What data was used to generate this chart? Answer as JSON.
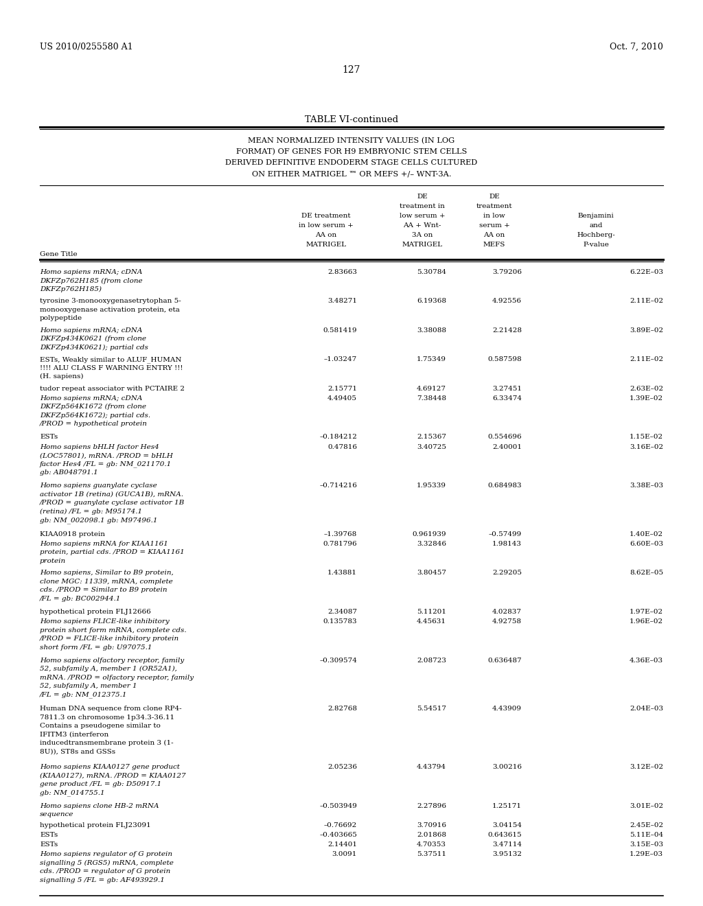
{
  "patent_left": "US 2010/0255580 A1",
  "patent_right": "Oct. 7, 2010",
  "page_number": "127",
  "table_title": "TABLE VI-continued",
  "subtitle_lines": [
    "MEAN NORMALIZED INTENSITY VALUES (IN LOG",
    "FORMAT) OF GENES FOR H9 EMBRYONIC STEM CELLS",
    "DERIVED DEFINITIVE ENDODERM STAGE CELLS CULTURED",
    "ON EITHER MATRIGEL ™ OR MEFS +/– WNT-3A."
  ],
  "rows": [
    {
      "gene": "Homo sapiens mRNA; cDNA\nDKFZp762H185 (from clone\nDKFZp762H185)",
      "italic": true,
      "v1": "2.83663",
      "v2": "5.30784",
      "v3": "3.79206",
      "v4": "6.22E–03"
    },
    {
      "gene": "tyrosine 3-monooxygenasetrytophan 5-\nmonooxygenase activation protein, eta\npolypeptide",
      "italic": false,
      "v1": "3.48271",
      "v2": "6.19368",
      "v3": "4.92556",
      "v4": "2.11E–02"
    },
    {
      "gene": "Homo sapiens mRNA; cDNA\nDKFZp434K0621 (from clone\nDKFZp434K0621); partial cds",
      "italic": true,
      "v1": "0.581419",
      "v2": "3.38088",
      "v3": "2.21428",
      "v4": "3.89E–02"
    },
    {
      "gene": "ESTs, Weakly similar to ALUF_HUMAN\n!!!! ALU CLASS F WARNING ENTRY !!!\n(H. sapiens)",
      "italic": false,
      "v1": "–1.03247",
      "v2": "1.75349",
      "v3": "0.587598",
      "v4": "2.11E–02"
    },
    {
      "gene": "tudor repeat associator with PCTAIRE 2",
      "italic": false,
      "v1": "2.15771",
      "v2": "4.69127",
      "v3": "3.27451",
      "v4": "2.63E–02"
    },
    {
      "gene": "Homo sapiens mRNA; cDNA\nDKFZp564K1672 (from clone\nDKFZp564K1672); partial cds.\n/PROD = hypothetical protein",
      "italic": true,
      "v1": "4.49405",
      "v2": "7.38448",
      "v3": "6.33474",
      "v4": "1.39E–02"
    },
    {
      "gene": "ESTs",
      "italic": false,
      "v1": "–0.184212",
      "v2": "2.15367",
      "v3": "0.554696",
      "v4": "1.15E–02"
    },
    {
      "gene": "Homo sapiens bHLH factor Hes4\n(LOC57801), mRNA. /PROD = bHLH\nfactor Hes4 /FL = gb: NM_021170.1\ngb: AB048791.1",
      "italic": true,
      "v1": "0.47816",
      "v2": "3.40725",
      "v3": "2.40001",
      "v4": "3.16E–02"
    },
    {
      "gene": "Homo sapiens guanylate cyclase\nactivator 1B (retina) (GUCA1B), mRNA.\n/PROD = guanylate cyclase activator 1B\n(retina) /FL = gb: M95174.1\ngb: NM_002098.1 gb: M97496.1",
      "italic": true,
      "v1": "–0.714216",
      "v2": "1.95339",
      "v3": "0.684983",
      "v4": "3.38E–03"
    },
    {
      "gene": "KIAA0918 protein",
      "italic": false,
      "v1": "–1.39768",
      "v2": "0.961939",
      "v3": "–0.57499",
      "v4": "1.40E–02"
    },
    {
      "gene": "Homo sapiens mRNA for KIAA1161\nprotein, partial cds. /PROD = KIAA1161\nprotein",
      "italic": true,
      "v1": "0.781796",
      "v2": "3.32846",
      "v3": "1.98143",
      "v4": "6.60E–03"
    },
    {
      "gene": "Homo sapiens, Similar to B9 protein,\nclone MGC: 11339, mRNA, complete\ncds. /PROD = Similar to B9 protein\n/FL = gb: BC002944.1",
      "italic": true,
      "v1": "1.43881",
      "v2": "3.80457",
      "v3": "2.29205",
      "v4": "8.62E–05"
    },
    {
      "gene": "hypothetical protein FLJ12666",
      "italic": false,
      "v1": "2.34087",
      "v2": "5.11201",
      "v3": "4.02837",
      "v4": "1.97E–02"
    },
    {
      "gene": "Homo sapiens FLICE-like inhibitory\nprotein short form mRNA, complete cds.\n/PROD = FLICE-like inhibitory protein\nshort form /FL = gb: U97075.1",
      "italic": true,
      "v1": "0.135783",
      "v2": "4.45631",
      "v3": "4.92758",
      "v4": "1.96E–02"
    },
    {
      "gene": "Homo sapiens olfactory receptor, family\n52, subfamily A, member 1 (OR52A1),\nmRNA. /PROD = olfactory receptor, family\n52, subfamily A, member 1\n/FL = gb: NM_012375.1",
      "italic": true,
      "v1": "–0.309574",
      "v2": "2.08723",
      "v3": "0.636487",
      "v4": "4.36E–03"
    },
    {
      "gene": "Human DNA sequence from clone RP4-\n7811.3 on chromosome 1p34.3-36.11\nContains a pseudogene similar to\nIFITM3 (interferon\ninducedtransmembrane protein 3 (1-\n8U)), ST8s and GSSs",
      "italic": false,
      "v1": "2.82768",
      "v2": "5.54517",
      "v3": "4.43909",
      "v4": "2.04E–03"
    },
    {
      "gene": "Homo sapiens KIAA0127 gene product\n(KIAA0127), mRNA. /PROD = KIAA0127\ngene product /FL = gb: D50917.1\ngb: NM_014755.1",
      "italic": true,
      "v1": "2.05236",
      "v2": "4.43794",
      "v3": "3.00216",
      "v4": "3.12E–02"
    },
    {
      "gene": "Homo sapiens clone HB-2 mRNA\nsequence",
      "italic": true,
      "v1": "–0.503949",
      "v2": "2.27896",
      "v3": "1.25171",
      "v4": "3.01E–02"
    },
    {
      "gene": "hypothetical protein FLJ23091",
      "italic": false,
      "v1": "–0.76692",
      "v2": "3.70916",
      "v3": "3.04154",
      "v4": "2.45E–02"
    },
    {
      "gene": "ESTs",
      "italic": false,
      "v1": "–0.403665",
      "v2": "2.01868",
      "v3": "0.643615",
      "v4": "5.11E–04"
    },
    {
      "gene": "ESTs",
      "italic": false,
      "v1": "2.14401",
      "v2": "4.70353",
      "v3": "3.47114",
      "v4": "3.15E–03"
    },
    {
      "gene": "Homo sapiens regulator of G protein\nsignalling 5 (RGS5) mRNA, complete\ncds. /PROD = regulator of G protein\nsignalling 5 /FL = gb: AF493929.1",
      "italic": true,
      "v1": "3.0091",
      "v2": "5.37511",
      "v3": "3.95132",
      "v4": "1.29E–03"
    }
  ],
  "bg_color": "#ffffff",
  "text_color": "#000000",
  "line_color": "#000000"
}
